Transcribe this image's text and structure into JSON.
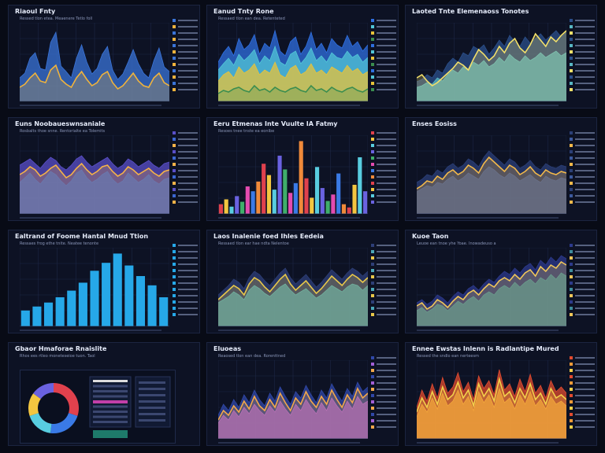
{
  "panels": [
    {
      "title": "Riaoul Fnty",
      "subtitle": "Ressed tlon etea. Meaenere Tetlo foll"
    },
    {
      "title": "Eanud Tnty Rone",
      "subtitle": "Ressaed tlon ean dea. Retenteted"
    },
    {
      "title": "Laoted Tnte Elemenaoss Tonotes",
      "subtitle": ""
    },
    {
      "title": "Euns Noobaueswnsaniale",
      "subtitle": "Rosbalts thoe snne. Rentorialte ea Tolemits"
    },
    {
      "title": "Eeru Etmenas Inte Vuulte IA Fatmy",
      "subtitle": "Resoes tnee tnste ea eonlbe"
    },
    {
      "title": "Enses Eosiss",
      "subtitle": ""
    },
    {
      "title": "Ealtrand of Foome Hantal Mnud Ttion",
      "subtitle": "Ressaes frog ethe tnite. Neatee tenonte"
    },
    {
      "title": "Laos Inalenie foed Ihles Eedeia",
      "subtitle": "Ressaed tlon ear hae ndta Nelentoe"
    },
    {
      "title": "Kuoe Taon",
      "subtitle": "Leuoe ean tnoe yhe Yoae. Inowadeuso a"
    },
    {
      "title": "Gbaor Hmaforae Rnaislite",
      "subtitle": "Rhos ees rtleo moneteseioe tuon. Taol"
    },
    {
      "title": "Eluoeas",
      "subtitle": "Reaosed tlon ean dea. Rorenttned"
    },
    {
      "title": "Ennee Ewstas Inlenn is Radlantipe Mured",
      "subtitle": "Ressed the sndlo ean nerteesm"
    }
  ],
  "chart_data": [
    {
      "type": "area",
      "colors": [
        "#3a74d8",
        "#f0b33c"
      ],
      "series": [
        {
          "values": [
            30,
            36,
            55,
            62,
            42,
            40,
            75,
            88,
            45,
            38,
            30,
            55,
            72,
            50,
            35,
            42,
            60,
            70,
            40,
            28,
            35,
            50,
            66,
            48,
            36,
            30,
            52,
            68,
            44,
            38
          ]
        },
        {
          "values": [
            18,
            22,
            30,
            36,
            26,
            24,
            40,
            46,
            28,
            22,
            18,
            30,
            38,
            28,
            20,
            24,
            34,
            38,
            24,
            16,
            20,
            28,
            36,
            26,
            20,
            18,
            30,
            36,
            24,
            20
          ]
        }
      ]
    },
    {
      "type": "area",
      "colors": [
        "#2f6fe0",
        "#52c6d8",
        "#e8c33a",
        "#3a8d4f"
      ],
      "series": [
        {
          "values": [
            50,
            62,
            70,
            58,
            80,
            66,
            72,
            85,
            60,
            74,
            68,
            90,
            64,
            58,
            76,
            82,
            60,
            70,
            88,
            66,
            74,
            62,
            80,
            72,
            68,
            84,
            70,
            76,
            64,
            72
          ]
        },
        {
          "values": [
            40,
            48,
            55,
            46,
            60,
            52,
            58,
            66,
            48,
            58,
            52,
            70,
            50,
            46,
            60,
            64,
            48,
            56,
            68,
            52,
            58,
            50,
            62,
            56,
            54,
            64,
            56,
            60,
            50,
            56
          ]
        },
        {
          "values": [
            26,
            34,
            38,
            30,
            44,
            36,
            40,
            48,
            34,
            40,
            36,
            50,
            34,
            30,
            42,
            46,
            34,
            38,
            48,
            36,
            40,
            34,
            44,
            40,
            36,
            46,
            38,
            42,
            34,
            38
          ]
        },
        {
          "values": [
            10,
            14,
            12,
            16,
            18,
            14,
            12,
            20,
            14,
            16,
            12,
            18,
            14,
            12,
            16,
            18,
            14,
            12,
            20,
            14,
            16,
            12,
            18,
            14,
            12,
            16,
            18,
            14,
            12,
            16
          ]
        }
      ]
    },
    {
      "type": "area",
      "colors": [
        "#2b4f8a",
        "#58b7c4",
        "#f3e06a"
      ],
      "series": [
        {
          "values": [
            25,
            28,
            34,
            30,
            40,
            36,
            48,
            55,
            50,
            62,
            58,
            70,
            66,
            72,
            60,
            68,
            78,
            70,
            84,
            76,
            70,
            82,
            74,
            80,
            86,
            78,
            84,
            90,
            82,
            88
          ]
        },
        {
          "values": [
            18,
            20,
            24,
            22,
            30,
            26,
            34,
            40,
            36,
            44,
            40,
            50,
            46,
            52,
            44,
            48,
            56,
            50,
            60,
            54,
            50,
            58,
            52,
            56,
            62,
            56,
            60,
            64,
            58,
            62
          ]
        },
        {
          "values": [
            30,
            34,
            26,
            20,
            24,
            30,
            36,
            42,
            50,
            46,
            40,
            54,
            66,
            60,
            52,
            58,
            70,
            62,
            74,
            80,
            68,
            62,
            72,
            86,
            78,
            70,
            82,
            76,
            84,
            90
          ]
        }
      ]
    },
    {
      "type": "area",
      "colors": [
        "#5a4fc8",
        "#3b66d1",
        "#f6b348"
      ],
      "series": [
        {
          "values": [
            62,
            66,
            70,
            64,
            58,
            66,
            72,
            68,
            60,
            56,
            62,
            70,
            74,
            66,
            60,
            64,
            68,
            72,
            64,
            58,
            62,
            70,
            66,
            60,
            64,
            68,
            62,
            58,
            64,
            66
          ]
        },
        {
          "values": [
            40,
            46,
            52,
            44,
            38,
            46,
            54,
            50,
            42,
            36,
            42,
            52,
            56,
            46,
            40,
            44,
            50,
            54,
            44,
            38,
            42,
            52,
            46,
            40,
            44,
            50,
            42,
            38,
            44,
            46
          ]
        },
        {
          "values": [
            50,
            54,
            60,
            56,
            48,
            52,
            58,
            62,
            54,
            46,
            50,
            58,
            64,
            56,
            50,
            54,
            60,
            62,
            54,
            48,
            52,
            60,
            56,
            50,
            54,
            58,
            52,
            48,
            54,
            56
          ]
        }
      ]
    },
    {
      "type": "bar",
      "values": [
        12,
        18,
        9,
        22,
        15,
        34,
        28,
        40,
        62,
        48,
        30,
        72,
        55,
        26,
        38,
        90,
        44,
        20,
        58,
        32,
        16,
        24,
        50,
        12,
        8,
        36,
        70,
        28
      ],
      "colors": [
        "#e0414d",
        "#f3c640",
        "#58cde0",
        "#6a62e0",
        "#3fae6a",
        "#e34bb0",
        "#3a7ae6",
        "#f08a3a"
      ]
    },
    {
      "type": "area",
      "colors": [
        "#2b3f77",
        "#3c5a9e",
        "#f3b94a"
      ],
      "series": [
        {
          "values": [
            40,
            44,
            50,
            48,
            56,
            52,
            60,
            64,
            58,
            62,
            70,
            66,
            60,
            72,
            80,
            74,
            68,
            62,
            70,
            66,
            58,
            62,
            68,
            60,
            56,
            64,
            60,
            58,
            62,
            60
          ]
        },
        {
          "values": [
            28,
            32,
            36,
            34,
            40,
            38,
            44,
            48,
            42,
            46,
            52,
            48,
            44,
            54,
            60,
            56,
            50,
            46,
            52,
            48,
            42,
            46,
            50,
            44,
            40,
            48,
            44,
            42,
            46,
            44
          ]
        },
        {
          "values": [
            32,
            36,
            42,
            40,
            48,
            44,
            52,
            56,
            50,
            54,
            62,
            58,
            52,
            64,
            72,
            66,
            60,
            54,
            62,
            58,
            50,
            54,
            60,
            52,
            48,
            56,
            52,
            50,
            54,
            52
          ]
        }
      ]
    },
    {
      "type": "bar",
      "values": [
        12,
        15,
        18,
        22,
        27,
        33,
        42,
        48,
        55,
        46,
        38,
        31,
        22
      ],
      "colors": [
        "#26a8e8"
      ]
    },
    {
      "type": "area",
      "colors": [
        "#2e3f78",
        "#4aa7b8",
        "#e9c84a"
      ],
      "series": [
        {
          "values": [
            40,
            46,
            52,
            60,
            56,
            48,
            62,
            70,
            66,
            58,
            52,
            60,
            68,
            74,
            62,
            54,
            60,
            66,
            58,
            50,
            56,
            64,
            72,
            66,
            60,
            68,
            74,
            70,
            64,
            70
          ]
        },
        {
          "values": [
            30,
            34,
            38,
            44,
            40,
            34,
            46,
            52,
            48,
            42,
            38,
            44,
            50,
            54,
            46,
            40,
            44,
            48,
            42,
            36,
            40,
            46,
            52,
            48,
            44,
            50,
            54,
            52,
            46,
            52
          ]
        },
        {
          "values": [
            34,
            40,
            46,
            52,
            48,
            40,
            54,
            62,
            58,
            50,
            44,
            52,
            60,
            66,
            54,
            46,
            52,
            58,
            50,
            42,
            48,
            56,
            64,
            58,
            52,
            60,
            66,
            62,
            56,
            62
          ]
        }
      ]
    },
    {
      "type": "area",
      "colors": [
        "#2c3a8c",
        "#3d8c9c",
        "#f1c75a"
      ],
      "series": [
        {
          "values": [
            30,
            34,
            28,
            32,
            40,
            36,
            30,
            38,
            44,
            40,
            48,
            52,
            46,
            54,
            60,
            56,
            64,
            70,
            66,
            74,
            68,
            76,
            80,
            72,
            84,
            78,
            88,
            82,
            90,
            86
          ]
        },
        {
          "values": [
            20,
            24,
            18,
            22,
            28,
            26,
            20,
            26,
            32,
            28,
            34,
            38,
            32,
            40,
            44,
            40,
            48,
            52,
            48,
            56,
            50,
            56,
            60,
            54,
            62,
            58,
            66,
            60,
            68,
            64
          ]
        },
        {
          "values": [
            26,
            30,
            22,
            26,
            34,
            30,
            24,
            32,
            38,
            34,
            42,
            46,
            40,
            48,
            54,
            50,
            58,
            62,
            58,
            66,
            60,
            68,
            72,
            64,
            76,
            70,
            78,
            74,
            82,
            78
          ]
        }
      ]
    },
    {
      "type": "pie",
      "values": [
        30,
        22,
        18,
        15,
        15
      ],
      "colors": [
        "#e0414d",
        "#3a7ae6",
        "#58cde0",
        "#f3c640",
        "#6a62e0"
      ]
    },
    {
      "type": "area",
      "colors": [
        "#3048a8",
        "#a25fd6",
        "#f3a84a"
      ],
      "series": [
        {
          "values": [
            30,
            44,
            36,
            50,
            40,
            56,
            46,
            62,
            50,
            42,
            58,
            48,
            66,
            54,
            44,
            60,
            52,
            68,
            56,
            46,
            62,
            52,
            70,
            58,
            48,
            64,
            54,
            72,
            60,
            66
          ]
        },
        {
          "values": [
            20,
            30,
            24,
            36,
            28,
            40,
            32,
            44,
            36,
            30,
            42,
            34,
            48,
            38,
            30,
            44,
            36,
            50,
            40,
            32,
            46,
            36,
            52,
            42,
            34,
            48,
            38,
            54,
            44,
            48
          ]
        },
        {
          "values": [
            24,
            36,
            30,
            42,
            34,
            48,
            38,
            54,
            42,
            36,
            50,
            40,
            58,
            46,
            36,
            52,
            44,
            60,
            48,
            40,
            54,
            44,
            62,
            50,
            40,
            56,
            46,
            64,
            52,
            58
          ]
        }
      ]
    },
    {
      "type": "area",
      "colors": [
        "#e24b2f",
        "#f39a36",
        "#f3d04a"
      ],
      "series": [
        {
          "values": [
            40,
            62,
            48,
            70,
            52,
            78,
            58,
            66,
            84,
            60,
            72,
            50,
            80,
            64,
            74,
            56,
            88,
            62,
            70,
            54,
            76,
            60,
            82,
            58,
            68,
            52,
            74,
            60,
            66,
            58
          ]
        },
        {
          "values": [
            28,
            44,
            34,
            52,
            38,
            58,
            42,
            48,
            62,
            44,
            54,
            36,
            60,
            46,
            56,
            40,
            64,
            46,
            52,
            38,
            56,
            44,
            60,
            42,
            50,
            38,
            54,
            44,
            48,
            42
          ]
        },
        {
          "values": [
            34,
            52,
            40,
            60,
            44,
            66,
            50,
            56,
            72,
            52,
            62,
            42,
            70,
            54,
            64,
            48,
            76,
            54,
            60,
            46,
            64,
            52,
            70,
            50,
            58,
            44,
            64,
            52,
            56,
            50
          ]
        }
      ]
    }
  ]
}
